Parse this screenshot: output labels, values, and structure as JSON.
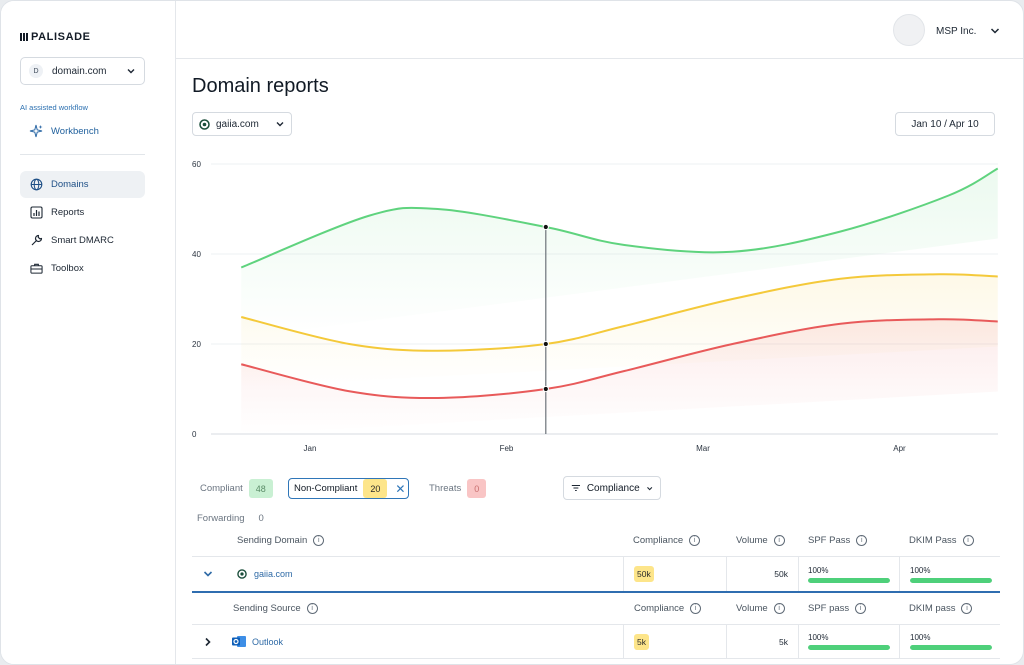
{
  "brand": {
    "name": "PALISADE"
  },
  "sidebar": {
    "domain_select": {
      "initial": "D",
      "value": "domain.com"
    },
    "ai_label": "AI assisted workflow",
    "workbench": "Workbench",
    "items": [
      {
        "label": "Domains",
        "icon": "globe-icon",
        "active": true
      },
      {
        "label": "Reports",
        "icon": "bar-chart-icon",
        "active": false
      },
      {
        "label": "Smart DMARC",
        "icon": "wrench-icon",
        "active": false
      },
      {
        "label": "Toolbox",
        "icon": "toolbox-icon",
        "active": false
      }
    ]
  },
  "header": {
    "org_name": "MSP Inc."
  },
  "page": {
    "title": "Domain reports",
    "site_select": "gaiia.com",
    "date_range": "Jan 10 / Apr 10"
  },
  "chart_data": {
    "type": "line",
    "x": [
      "Jan",
      "Feb",
      "Mar",
      "Apr"
    ],
    "xlim": [
      0,
      3.5
    ],
    "ylim": [
      0,
      60
    ],
    "yticks": [
      0,
      20,
      40,
      60
    ],
    "grid": true,
    "series": [
      {
        "color": "#5fd37e",
        "points": [
          [
            -0.35,
            37
          ],
          [
            0.3,
            48.5
          ],
          [
            0.65,
            50
          ],
          [
            1.2,
            46
          ],
          [
            1.6,
            42
          ],
          [
            2.15,
            40.5
          ],
          [
            2.7,
            45
          ],
          [
            3.25,
            53
          ],
          [
            3.5,
            59
          ]
        ]
      },
      {
        "color": "#f4c93a",
        "points": [
          [
            -0.35,
            26
          ],
          [
            0.2,
            20
          ],
          [
            0.65,
            18.5
          ],
          [
            1.2,
            20
          ],
          [
            1.6,
            24
          ],
          [
            2.15,
            30
          ],
          [
            2.7,
            34.5
          ],
          [
            3.2,
            35.5
          ],
          [
            3.5,
            35
          ]
        ]
      },
      {
        "color": "#e85a5a",
        "points": [
          [
            -0.35,
            15.5
          ],
          [
            0.2,
            9.5
          ],
          [
            0.65,
            8
          ],
          [
            1.2,
            10
          ],
          [
            1.6,
            14
          ],
          [
            2.15,
            20
          ],
          [
            2.7,
            24.5
          ],
          [
            3.2,
            25.5
          ],
          [
            3.5,
            25
          ]
        ]
      }
    ],
    "cursor": {
      "x": 1.2,
      "values": [
        46,
        20,
        10
      ]
    }
  },
  "filters": {
    "compliant": {
      "label": "Compliant",
      "count": "48",
      "color": "#c9f0d3"
    },
    "non_compliant": {
      "label": "Non-Compliant",
      "count": "20",
      "color": "#fde58a"
    },
    "threats": {
      "label": "Threats",
      "count": "0",
      "color": "#f9c5c5"
    },
    "forwarding": {
      "label": "Forwarding",
      "count": "0"
    },
    "compliance_dropdown": "Compliance"
  },
  "table": {
    "headers": {
      "sending_domain": "Sending Domain",
      "compliance": "Compliance",
      "volume": "Volume",
      "spf": "SPF Pass",
      "dkim": "DKIM Pass"
    },
    "domain_row": {
      "name": "gaiia.com",
      "compliance": "50k",
      "volume": "50k",
      "spf": "100%",
      "spf_value": 1.0,
      "dkim": "100%",
      "dkim_value": 1.0
    },
    "sub_headers": {
      "sending_source": "Sending Source",
      "compliance": "Compliance",
      "volume": "Volume",
      "spf": "SPF pass",
      "dkim": "DKIM pass"
    },
    "source_row": {
      "name": "Outlook",
      "compliance": "5k",
      "volume": "5k",
      "spf": "100%",
      "spf_value": 1.0,
      "dkim": "100%",
      "dkim_value": 1.0
    }
  }
}
